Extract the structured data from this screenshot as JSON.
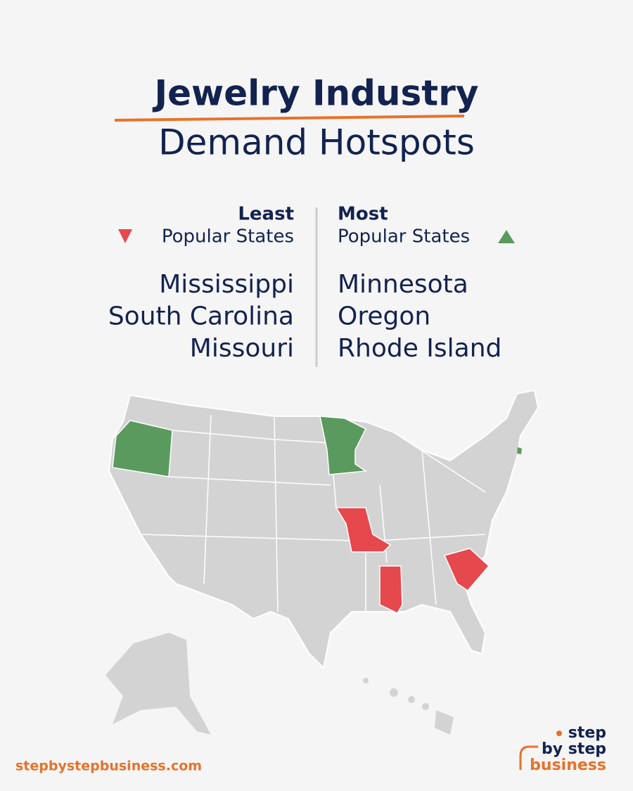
{
  "header": {
    "title": "Jewelry Industry",
    "subtitle": "Demand Hotspots"
  },
  "least": {
    "label": "Least",
    "caption": "Popular States",
    "color": "#e5484d",
    "states": [
      "Mississippi",
      "South Carolina",
      "Missouri"
    ]
  },
  "most": {
    "label": "Most",
    "caption": "Popular States",
    "color": "#5a9a5e",
    "states": [
      "Minnesota",
      "Oregon",
      "Rhode Island"
    ]
  },
  "footer": {
    "url": "stepbystepbusiness.com",
    "logo": [
      "step",
      "by step",
      "business"
    ]
  }
}
